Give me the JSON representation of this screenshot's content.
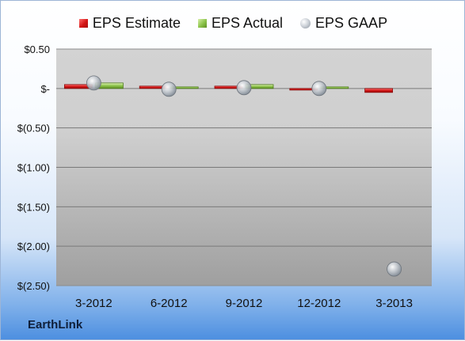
{
  "legend": {
    "estimate": "EPS Estimate",
    "actual": "EPS Actual",
    "gaap": "EPS GAAP"
  },
  "company_label": "EarthLink",
  "colors": {
    "estimate": "#d41515",
    "actual": "#8bc34a",
    "gaap": "#a7aeb6"
  },
  "chart_data": {
    "type": "bar",
    "categories": [
      "3-2012",
      "6-2012",
      "9-2012",
      "12-2012",
      "3-2013"
    ],
    "y_tick_labels": [
      "$0.50",
      "$-",
      "$(0.50)",
      "$(1.00)",
      "$(1.50)",
      "$(2.00)",
      "$(2.50)"
    ],
    "y_ticks": [
      0.5,
      0,
      -0.5,
      -1,
      -1.5,
      -2,
      -2.5
    ],
    "ylim": [
      -2.5,
      0.5
    ],
    "grid": true,
    "legend_position": "top",
    "series": [
      {
        "name": "EPS Estimate",
        "type": "bar",
        "values": [
          0.05,
          0.03,
          0.03,
          -0.01,
          -0.05
        ]
      },
      {
        "name": "EPS Actual",
        "type": "bar",
        "values": [
          0.07,
          0.02,
          0.05,
          0.02,
          null
        ]
      },
      {
        "name": "EPS GAAP",
        "type": "scatter",
        "values": [
          0.07,
          -0.01,
          0.01,
          0.0,
          -2.29
        ]
      }
    ]
  }
}
